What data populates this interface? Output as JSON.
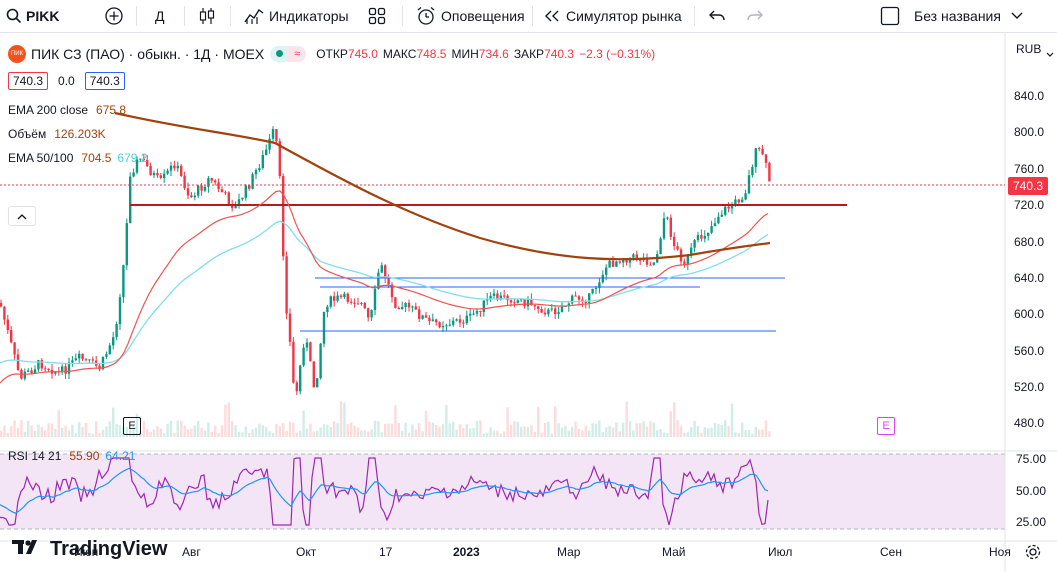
{
  "toolbar": {
    "symbol": "PIKK",
    "interval": "Д",
    "indicators": "Индикаторы",
    "alerts": "Оповещения",
    "replay": "Симулятор рынка",
    "layout_name": "Без названия"
  },
  "legend": {
    "company_logo": "ПИК",
    "title": "ПИК СЗ (ПАО) · обыкн. · 1Д · MOEX",
    "open_label": "ОТКР",
    "open": "745.0",
    "high_label": "МАКС",
    "high": "748.5",
    "low_label": "МИН",
    "low": "734.6",
    "close_label": "ЗАКР",
    "close": "740.3",
    "change": "−2.3 (−0.31%)",
    "bid": "740.3",
    "spread": "0.0",
    "ask": "740.3"
  },
  "indicators": {
    "ema200": {
      "label": "EMA 200 close",
      "value": "675.8",
      "color": "#a1420d"
    },
    "volume": {
      "label": "Объём",
      "value": "126.203K",
      "color": "#a1420d"
    },
    "ema50_100": {
      "label": "EMA 50/100",
      "value1": "704.5",
      "value2": "679.2",
      "color1": "#a1420d",
      "color2": "#4dd0e1"
    },
    "rsi": {
      "label": "RSI 14 21",
      "value1": "55.90",
      "value2": "64.21",
      "color1": "#a1420d",
      "color2": "#2196f3"
    }
  },
  "price_axis": {
    "currency": "RUB",
    "ticks": [
      "840.0",
      "800.0",
      "760.0",
      "720.0",
      "680.0",
      "640.0",
      "600.0",
      "560.0",
      "520.0",
      "480.0"
    ],
    "last_price": "740.3"
  },
  "rsi_axis": {
    "ticks": [
      "75.00",
      "50.00",
      "25.00"
    ]
  },
  "time_axis": {
    "ticks": [
      "Июн",
      "Авг",
      "Окт",
      "17",
      "2023",
      "Мар",
      "Май",
      "Июл",
      "Сен",
      "Ноя"
    ]
  },
  "events": {
    "earnings1": "E",
    "earnings2": "E"
  },
  "branding": {
    "logo_text": "TradingView"
  },
  "colors": {
    "up": "#089981",
    "down": "#f23645",
    "ema200": "#a1420d",
    "ema50": "#ef5350",
    "ema100": "#4dd0e1",
    "hline_red": "#b71c1c",
    "hline_blue": "#2962ff",
    "rsi_bg": "#f3e5f5"
  }
}
